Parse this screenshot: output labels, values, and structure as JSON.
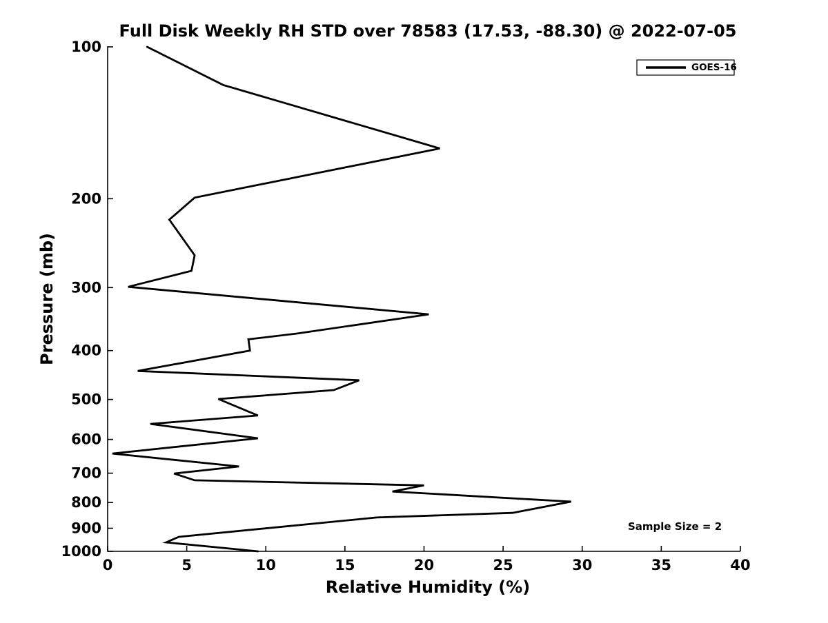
{
  "chart_data": {
    "type": "line",
    "title": "Full Disk Weekly RH STD over 78583 (17.53, -88.30) @ 2022-07-05",
    "xlabel": "Relative Humidity (%)",
    "ylabel": "Pressure (mb)",
    "xlim": [
      0,
      40
    ],
    "ylim": [
      100,
      1000
    ],
    "y_scale": "log",
    "y_inverted": true,
    "grid": "off",
    "x_ticks": [
      0,
      5,
      10,
      15,
      20,
      25,
      30,
      35,
      40
    ],
    "y_ticks": [
      100,
      200,
      300,
      400,
      500,
      600,
      700,
      800,
      900,
      1000
    ],
    "axis_color": "#000000",
    "background_color": "#ffffff",
    "legend": {
      "position": "top-right",
      "border_color": "#000000",
      "entries": [
        {
          "label": "GOES-16",
          "color": "#000000",
          "line_width": 3.5
        }
      ]
    },
    "annotation": {
      "text": "Sample Size = 2"
    },
    "series": [
      {
        "name": "GOES-16",
        "color": "#000000",
        "line_width": 2.8,
        "points_pressure_rh": [
          [
            100,
            2.5
          ],
          [
            119,
            7.3
          ],
          [
            159,
            21.0
          ],
          [
            199,
            5.5
          ],
          [
            220,
            3.9
          ],
          [
            259,
            5.5
          ],
          [
            278,
            5.3
          ],
          [
            299,
            1.3
          ],
          [
            339,
            20.3
          ],
          [
            370,
            12.0
          ],
          [
            380,
            8.9
          ],
          [
            400,
            9.0
          ],
          [
            439,
            1.9
          ],
          [
            458,
            15.9
          ],
          [
            479,
            14.3
          ],
          [
            499,
            7.0
          ],
          [
            538,
            9.5
          ],
          [
            559,
            2.7
          ],
          [
            597,
            9.5
          ],
          [
            640,
            0.3
          ],
          [
            679,
            8.3
          ],
          [
            701,
            4.2
          ],
          [
            723,
            5.5
          ],
          [
            740,
            20.0
          ],
          [
            761,
            18.0
          ],
          [
            797,
            29.3
          ],
          [
            839,
            25.6
          ],
          [
            857,
            17.0
          ],
          [
            936,
            4.5
          ],
          [
            960,
            3.7
          ],
          [
            1000,
            9.5
          ]
        ]
      }
    ]
  }
}
